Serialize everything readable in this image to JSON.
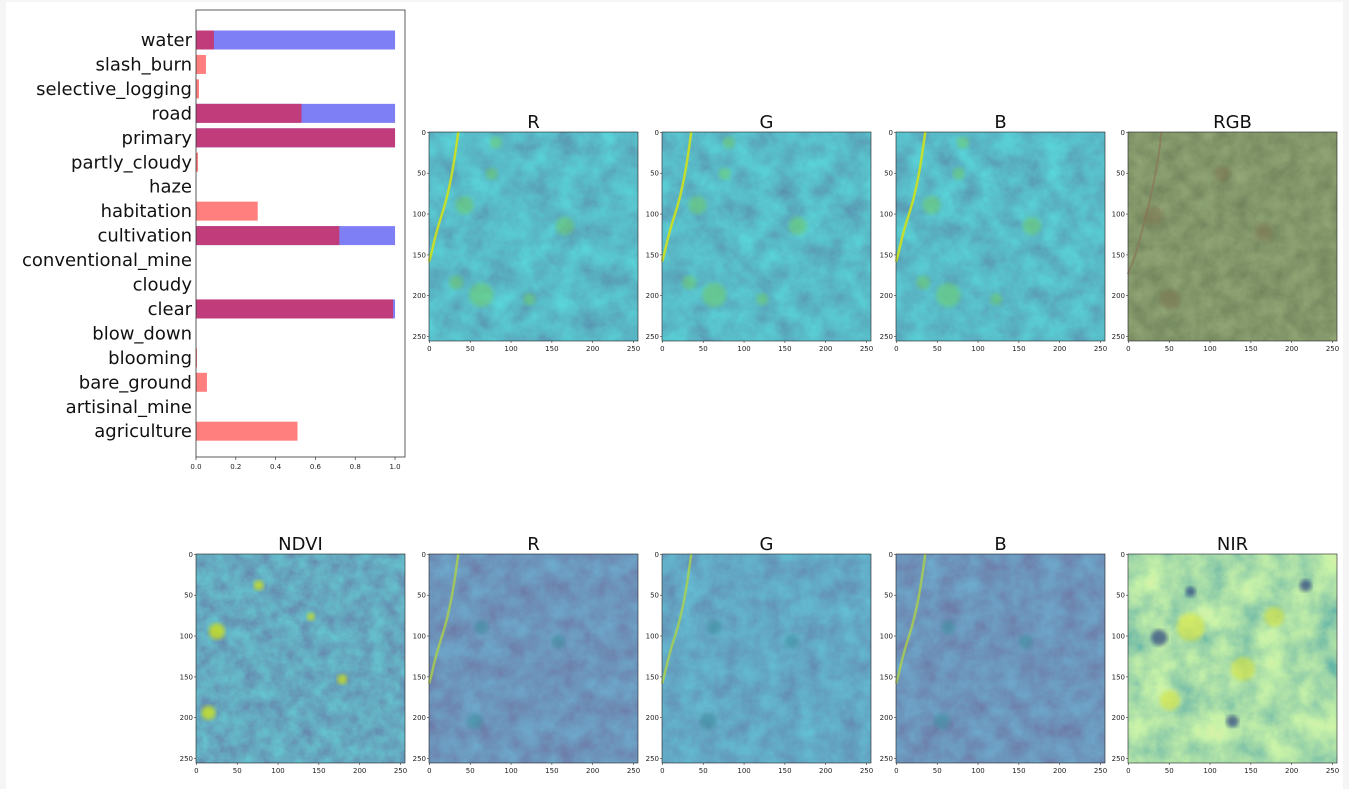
{
  "colors": {
    "truth": "#7f7ff5",
    "pred": "#ff7f7f",
    "overlap": "#c13c7a",
    "viridis_low": "#3b2a72",
    "viridis_mid": "#2c6f8e",
    "viridis_high": "#cde11d"
  },
  "chart_data": [
    {
      "type": "bar",
      "orientation": "horizontal",
      "categories": [
        "water",
        "slash_burn",
        "selective_logging",
        "road",
        "primary",
        "partly_cloudy",
        "haze",
        "habitation",
        "cultivation",
        "conventional_mine",
        "cloudy",
        "clear",
        "blow_down",
        "blooming",
        "bare_ground",
        "artisinal_mine",
        "agriculture"
      ],
      "series": [
        {
          "values": [
            1,
            0,
            0,
            1,
            1,
            0,
            0,
            0,
            1,
            0,
            0,
            1,
            0,
            0,
            0,
            0,
            0
          ]
        },
        {
          "values": [
            0.09,
            0.05,
            0.015,
            0.53,
            1.0,
            0.01,
            0.0,
            0.31,
            0.72,
            0.0,
            0.0,
            0.99,
            0.0,
            0.005,
            0.055,
            0.0,
            0.51
          ]
        }
      ],
      "xlim": [
        0,
        1.05
      ],
      "xticks": [
        "0.0",
        "0.2",
        "0.4",
        "0.6",
        "0.8",
        "1.0"
      ]
    }
  ],
  "panels": {
    "top": [
      {
        "title": "R",
        "style": "green_band"
      },
      {
        "title": "G",
        "style": "green_band"
      },
      {
        "title": "B",
        "style": "green_band"
      },
      {
        "title": "RGB",
        "style": "rgb"
      }
    ],
    "bottom": [
      {
        "title": "NDVI",
        "style": "ndvi"
      },
      {
        "title": "R",
        "style": "dark_band"
      },
      {
        "title": "G",
        "style": "mid_band"
      },
      {
        "title": "B",
        "style": "dark_band"
      },
      {
        "title": "NIR",
        "style": "nir"
      }
    ],
    "yticks": [
      "0",
      "50",
      "100",
      "150",
      "200",
      "250"
    ],
    "xticks": [
      "0",
      "50",
      "100",
      "150",
      "200",
      "250"
    ]
  }
}
